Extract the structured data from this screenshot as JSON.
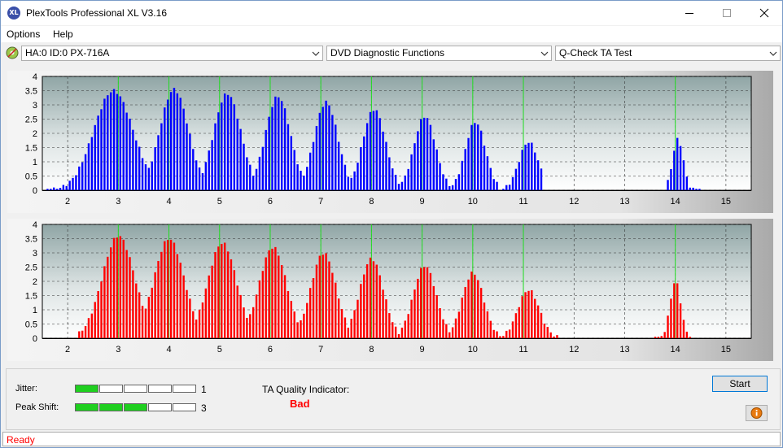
{
  "window": {
    "title": "PlexTools Professional XL V3.16",
    "icon_text": "XL"
  },
  "menu": {
    "items": [
      "Options",
      "Help"
    ]
  },
  "toolbar": {
    "drive": "HA:0 ID:0  PX-716A",
    "function": "DVD Diagnostic Functions",
    "test": "Q-Check TA Test"
  },
  "chart_data": [
    {
      "type": "bar",
      "name": "top",
      "color": "#0000ff",
      "xlim": [
        1.5,
        15.5
      ],
      "ylim": [
        0,
        4
      ],
      "x_ticks": [
        2,
        3,
        4,
        5,
        6,
        7,
        8,
        9,
        10,
        11,
        12,
        13,
        14,
        15
      ],
      "y_ticks": [
        0,
        0.5,
        1,
        1.5,
        2,
        2.5,
        3,
        3.5,
        4
      ],
      "peaks": [
        {
          "center": 2.9,
          "height": 3.5,
          "width": 0.55
        },
        {
          "center": 4.1,
          "height": 3.55,
          "width": 0.4
        },
        {
          "center": 5.15,
          "height": 3.4,
          "width": 0.38
        },
        {
          "center": 6.15,
          "height": 3.3,
          "width": 0.35
        },
        {
          "center": 7.1,
          "height": 3.1,
          "width": 0.33
        },
        {
          "center": 8.05,
          "height": 2.85,
          "width": 0.32
        },
        {
          "center": 9.05,
          "height": 2.6,
          "width": 0.3
        },
        {
          "center": 10.05,
          "height": 2.4,
          "width": 0.28
        },
        {
          "center": 11.1,
          "height": 1.7,
          "width": 0.27
        },
        {
          "center": 14.05,
          "height": 1.8,
          "width": 0.15
        }
      ],
      "ranges": [
        [
          1.6,
          10.5
        ],
        [
          10.6,
          11.4
        ],
        [
          13.8,
          14.5
        ]
      ]
    },
    {
      "type": "bar",
      "name": "bottom",
      "color": "#ff0000",
      "xlim": [
        1.5,
        15.5
      ],
      "ylim": [
        0,
        4
      ],
      "x_ticks": [
        2,
        3,
        4,
        5,
        6,
        7,
        8,
        9,
        10,
        11,
        12,
        13,
        14,
        15
      ],
      "y_ticks": [
        0,
        0.5,
        1,
        1.5,
        2,
        2.5,
        3,
        3.5,
        4
      ],
      "peaks": [
        {
          "center": 3.0,
          "height": 3.6,
          "width": 0.45
        },
        {
          "center": 4.0,
          "height": 3.5,
          "width": 0.42
        },
        {
          "center": 5.05,
          "height": 3.35,
          "width": 0.4
        },
        {
          "center": 6.05,
          "height": 3.2,
          "width": 0.38
        },
        {
          "center": 7.05,
          "height": 3.0,
          "width": 0.35
        },
        {
          "center": 8.0,
          "height": 2.8,
          "width": 0.33
        },
        {
          "center": 9.05,
          "height": 2.55,
          "width": 0.32
        },
        {
          "center": 10.0,
          "height": 2.3,
          "width": 0.3
        },
        {
          "center": 11.1,
          "height": 1.7,
          "width": 0.3
        },
        {
          "center": 14.0,
          "height": 2.0,
          "width": 0.15
        }
      ],
      "ranges": [
        [
          2.2,
          11.7
        ],
        [
          13.6,
          14.3
        ]
      ]
    }
  ],
  "metrics": {
    "jitter_label": "Jitter:",
    "jitter_value": "1",
    "jitter_level": 1,
    "peak_shift_label": "Peak Shift:",
    "peak_shift_value": "3",
    "peak_shift_level": 3,
    "meter_segments": 5
  },
  "ta_quality": {
    "label": "TA Quality Indicator:",
    "value": "Bad",
    "value_color": "#ff0000"
  },
  "buttons": {
    "start": "Start",
    "info_icon": "info-icon"
  },
  "status": {
    "text": "Ready",
    "color": "#ff0000"
  }
}
